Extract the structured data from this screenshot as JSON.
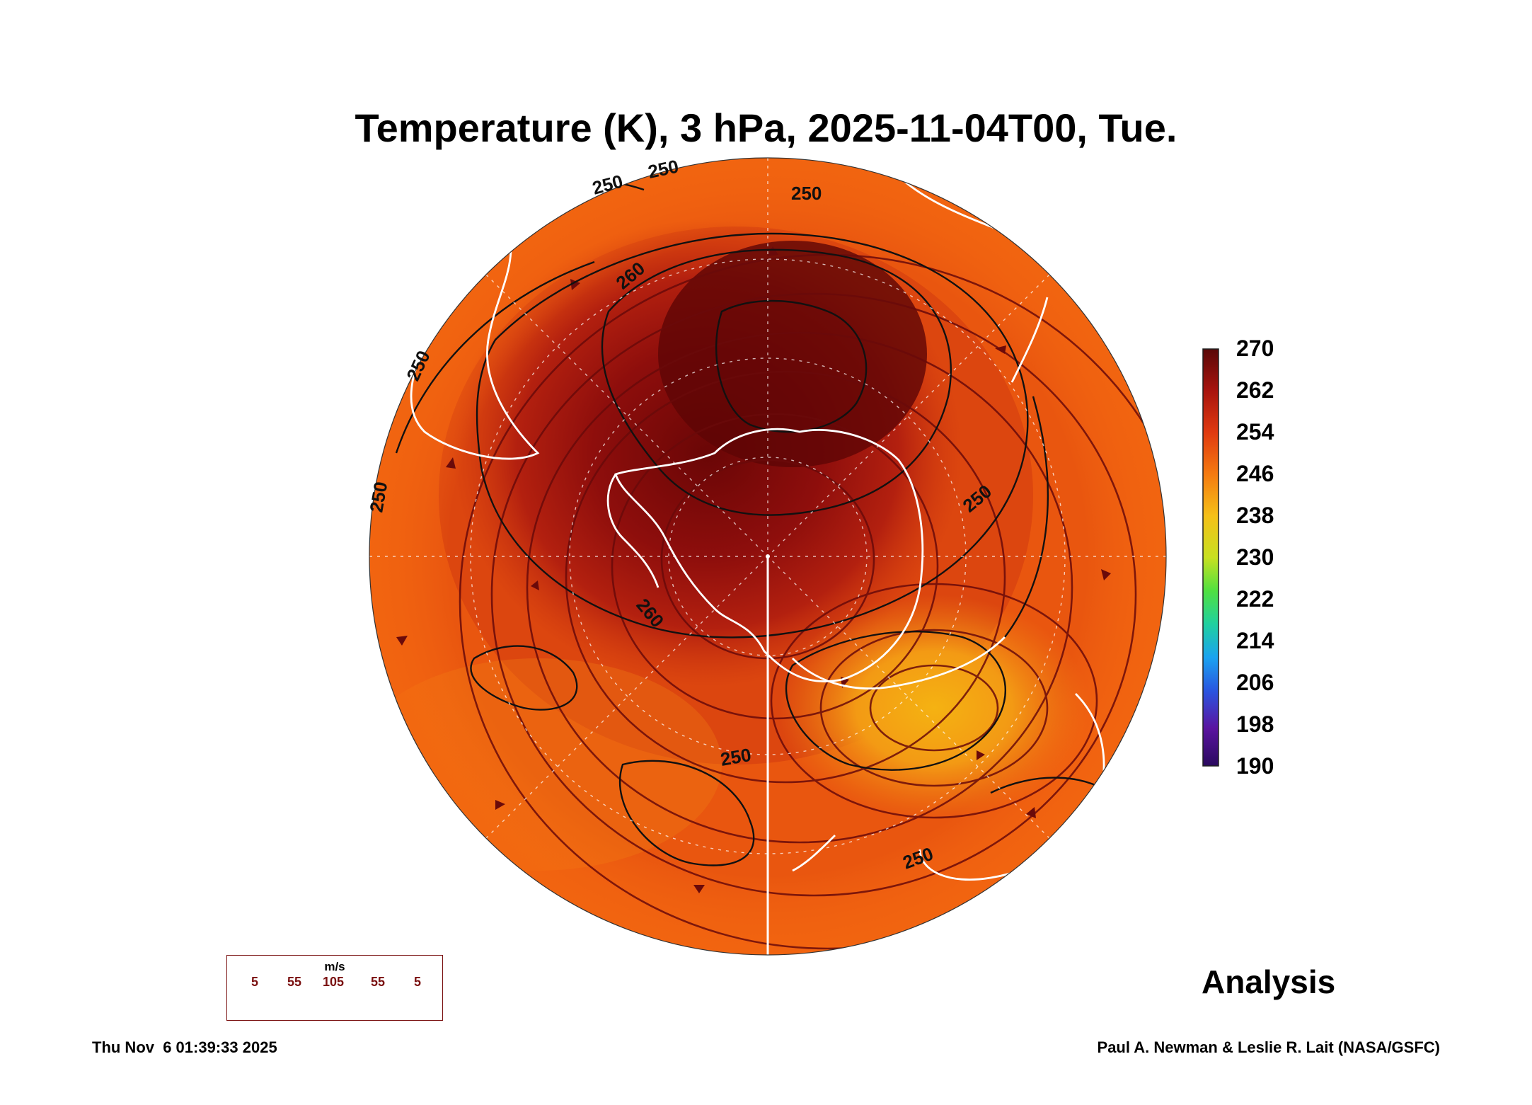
{
  "title": "Temperature (K), 3 hPa, 2025-11-04T00, Tue.",
  "colorbar": {
    "ticks": [
      "270",
      "262",
      "254",
      "246",
      "238",
      "230",
      "222",
      "214",
      "206",
      "198",
      "190"
    ],
    "colors": [
      "#2a0a5e",
      "#5a14a0",
      "#2a55e0",
      "#1aa3f0",
      "#20d0a0",
      "#50e040",
      "#c8e020",
      "#f5c018",
      "#f57a10",
      "#e03a10",
      "#a8140e",
      "#5a0808"
    ]
  },
  "contour_labels": [
    "250",
    "250",
    "250",
    "250",
    "250",
    "260",
    "250",
    "260",
    "250",
    "250"
  ],
  "analysis_label": "Analysis",
  "wind_legend": {
    "unit": "m/s",
    "values": [
      "5",
      "55",
      "105",
      "55",
      "5"
    ]
  },
  "footer": {
    "timestamp": "Thu Nov  6 01:39:33 2025",
    "credit": "Paul A. Newman & Leslie R. Lait (NASA/GSFC)"
  }
}
